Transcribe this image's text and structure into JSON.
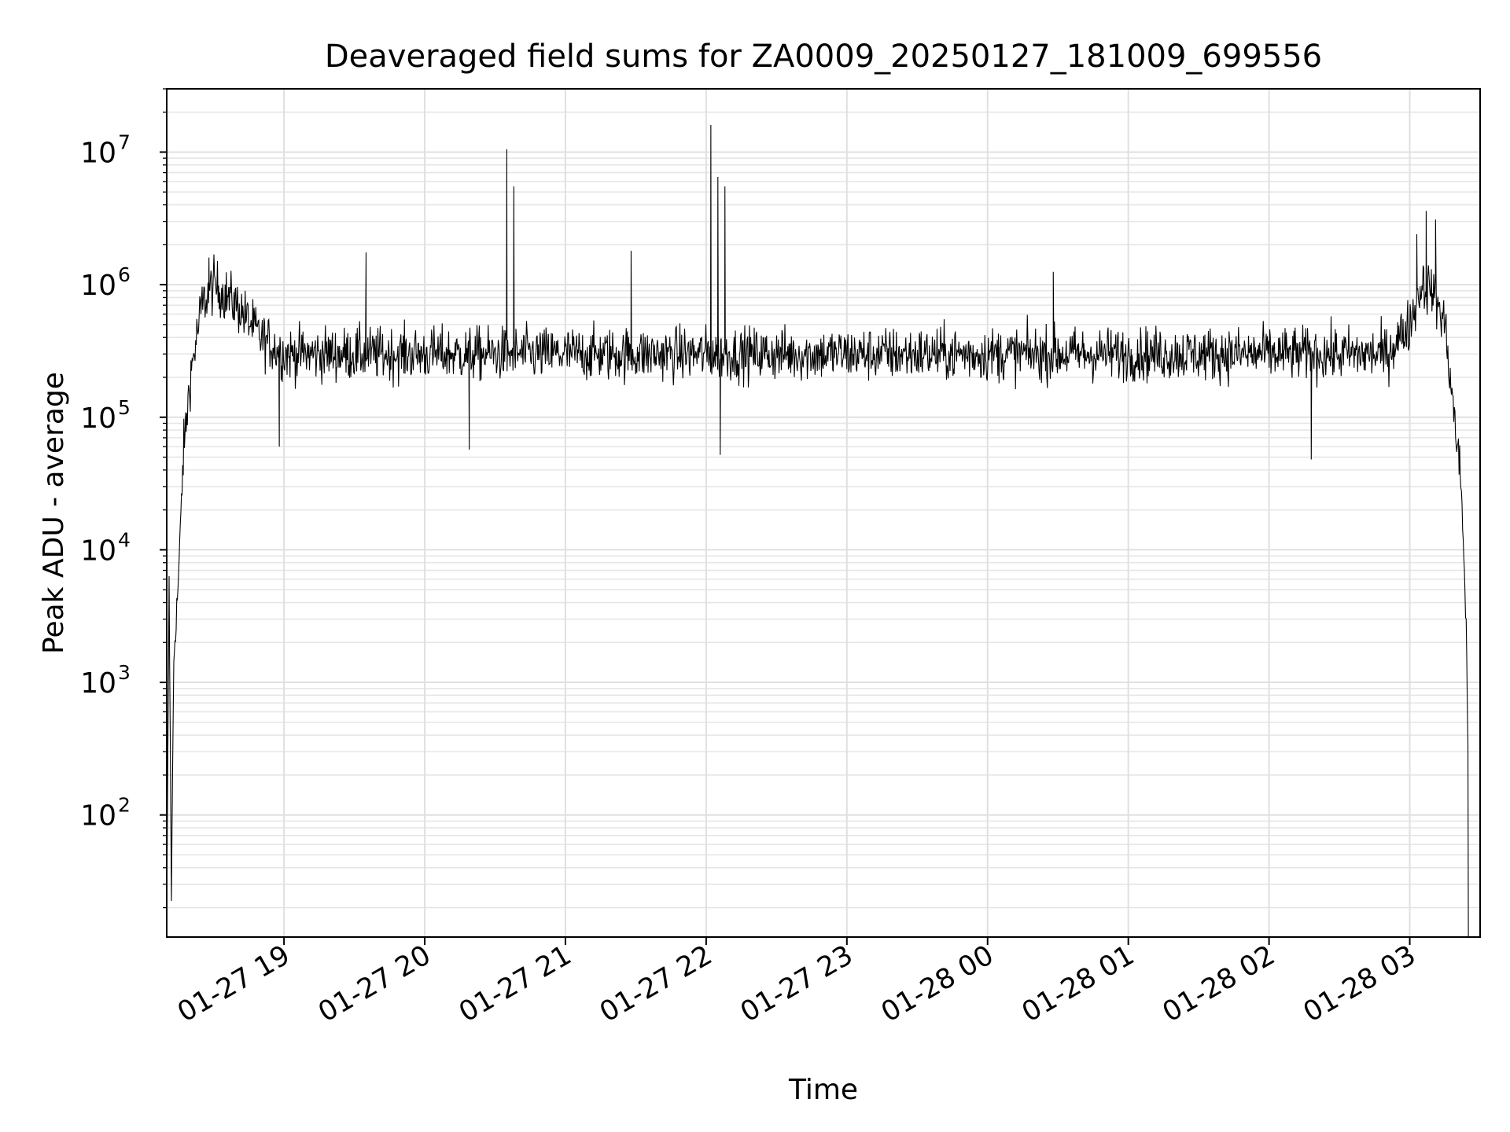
{
  "chart_data": {
    "type": "line",
    "title": "Deaveraged field sums for ZA0009_20250127_181009_699556",
    "xlabel": "Time",
    "ylabel": "Peak ADU - average",
    "yscale": "log",
    "ylim": [
      12,
      30000000
    ],
    "xlim": [
      "2025-01-27 18:10",
      "2025-01-28 03:30"
    ],
    "grid": true,
    "legend": "none",
    "x_ticks": [
      {
        "t": "2025-01-27 19:00",
        "label": "01-27 19"
      },
      {
        "t": "2025-01-27 20:00",
        "label": "01-27 20"
      },
      {
        "t": "2025-01-27 21:00",
        "label": "01-27 21"
      },
      {
        "t": "2025-01-27 22:00",
        "label": "01-27 22"
      },
      {
        "t": "2025-01-27 23:00",
        "label": "01-27 23"
      },
      {
        "t": "2025-01-28 00:00",
        "label": "01-28 00"
      },
      {
        "t": "2025-01-28 01:00",
        "label": "01-28 01"
      },
      {
        "t": "2025-01-28 02:00",
        "label": "01-28 02"
      },
      {
        "t": "2025-01-28 03:00",
        "label": "01-28 03"
      }
    ],
    "y_ticks": [
      {
        "value": 100,
        "base": "10",
        "exp": "2"
      },
      {
        "value": 1000,
        "base": "10",
        "exp": "3"
      },
      {
        "value": 10000,
        "base": "10",
        "exp": "4"
      },
      {
        "value": 100000,
        "base": "10",
        "exp": "5"
      },
      {
        "value": 1000000,
        "base": "10",
        "exp": "6"
      },
      {
        "value": 10000000,
        "base": "10",
        "exp": "7"
      }
    ],
    "series": [
      {
        "color": "#000000",
        "envelope": [
          {
            "t": "2025-01-27 18:10",
            "v": 15
          },
          {
            "t": "2025-01-27 18:11",
            "v": 5500
          },
          {
            "t": "2025-01-27 18:12",
            "v": 25
          },
          {
            "t": "2025-01-27 18:13",
            "v": 1500
          },
          {
            "t": "2025-01-27 18:15",
            "v": 6000
          },
          {
            "t": "2025-01-27 18:17",
            "v": 50000
          },
          {
            "t": "2025-01-27 18:20",
            "v": 200000
          },
          {
            "t": "2025-01-27 18:25",
            "v": 700000
          },
          {
            "t": "2025-01-27 18:30",
            "v": 1000000
          },
          {
            "t": "2025-01-27 18:40",
            "v": 700000
          },
          {
            "t": "2025-01-27 18:50",
            "v": 400000
          },
          {
            "t": "2025-01-27 19:00",
            "v": 300000
          },
          {
            "t": "2025-01-28 02:50",
            "v": 300000
          },
          {
            "t": "2025-01-28 03:00",
            "v": 500000
          },
          {
            "t": "2025-01-28 03:05",
            "v": 1000000
          },
          {
            "t": "2025-01-28 03:10",
            "v": 900000
          },
          {
            "t": "2025-01-28 03:15",
            "v": 500000
          },
          {
            "t": "2025-01-28 03:18",
            "v": 150000
          },
          {
            "t": "2025-01-28 03:22",
            "v": 30000
          },
          {
            "t": "2025-01-28 03:24",
            "v": 3000
          },
          {
            "t": "2025-01-28 03:25",
            "v": 200
          },
          {
            "t": "2025-01-28 03:25",
            "v": 12
          }
        ],
        "spikes": [
          {
            "t": "2025-01-27 18:28",
            "v": 1600000
          },
          {
            "t": "2025-01-27 18:58",
            "v": 60000
          },
          {
            "t": "2025-01-27 19:35",
            "v": 1750000
          },
          {
            "t": "2025-01-27 20:19",
            "v": 57000
          },
          {
            "t": "2025-01-27 20:35",
            "v": 10500000
          },
          {
            "t": "2025-01-27 20:38",
            "v": 5500000
          },
          {
            "t": "2025-01-27 21:28",
            "v": 1800000
          },
          {
            "t": "2025-01-27 22:02",
            "v": 16000000
          },
          {
            "t": "2025-01-27 22:05",
            "v": 6500000
          },
          {
            "t": "2025-01-27 22:06",
            "v": 52000
          },
          {
            "t": "2025-01-27 22:08",
            "v": 5500000
          },
          {
            "t": "2025-01-28 00:28",
            "v": 1250000
          },
          {
            "t": "2025-01-28 02:18",
            "v": 48000
          },
          {
            "t": "2025-01-28 03:03",
            "v": 2400000
          },
          {
            "t": "2025-01-28 03:07",
            "v": 3600000
          },
          {
            "t": "2025-01-28 03:11",
            "v": 3100000
          }
        ]
      }
    ]
  }
}
